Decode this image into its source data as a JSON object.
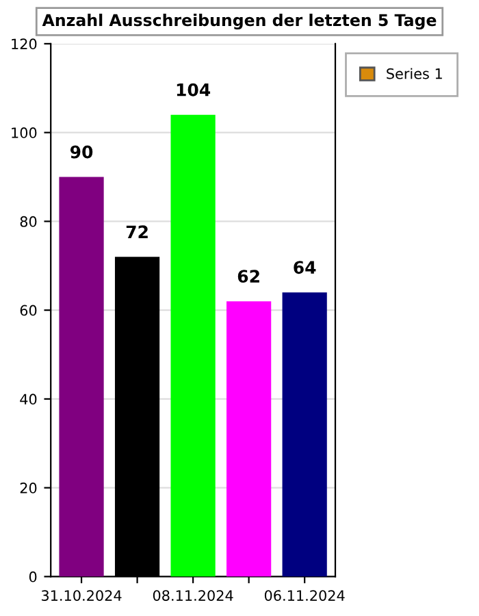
{
  "chart_data": {
    "type": "bar",
    "title": "Anzahl Ausschreibungen der letzten 5 Tage",
    "categories": [
      "31.10.2024",
      null,
      "08.11.2024",
      null,
      "06.11.2024"
    ],
    "series": [
      {
        "name": "Series 1",
        "color": "#d98b0c",
        "colors": [
          "#800080",
          "#000000",
          "#00ff00",
          "#ff00ff",
          "#000080"
        ],
        "values": [
          90,
          72,
          104,
          62,
          64
        ]
      }
    ],
    "ylim": [
      0,
      120
    ],
    "yticks": [
      0,
      20,
      40,
      60,
      80,
      100,
      120
    ],
    "grid": "y",
    "legend": "top right",
    "data_labels": true
  }
}
